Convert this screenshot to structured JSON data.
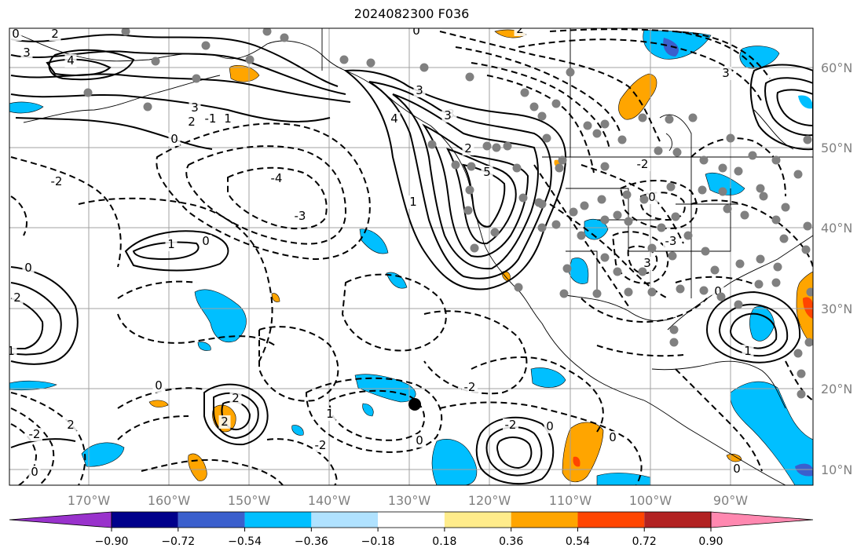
{
  "title": "2024082300 F036",
  "lon_labels": [
    "170°W",
    "160°W",
    "150°W",
    "140°W",
    "130°W",
    "120°W",
    "110°W",
    "100°W",
    "90°W"
  ],
  "lat_labels": [
    "60°N",
    "50°N",
    "40°N",
    "30°N",
    "20°N",
    "10°N"
  ],
  "colorbar": {
    "ticks": [
      "−0.90",
      "−0.72",
      "−0.54",
      "−0.36",
      "−0.18",
      "0.18",
      "0.36",
      "0.54",
      "0.72",
      "0.90"
    ],
    "colors": [
      "#9932cc",
      "#00008b",
      "#3a5fcd",
      "#00bfff",
      "#b0e2ff",
      "#ffffff",
      "#ffec8b",
      "#ffa500",
      "#ff4500",
      "#b22222",
      "#ff88b0"
    ]
  },
  "contour_labels": [
    {
      "text": "0"
    },
    {
      "text": "2"
    },
    {
      "text": "3"
    },
    {
      "text": "4"
    },
    {
      "text": "3"
    },
    {
      "text": "2"
    },
    {
      "text": "1"
    },
    {
      "text": "0"
    },
    {
      "text": "-2"
    },
    {
      "text": "-4"
    },
    {
      "text": "-3"
    },
    {
      "text": "1"
    },
    {
      "text": "0"
    },
    {
      "text": "0"
    },
    {
      "text": "2"
    },
    {
      "text": "1"
    },
    {
      "text": "-2"
    },
    {
      "text": "0"
    },
    {
      "text": "2"
    },
    {
      "text": "-2"
    },
    {
      "text": "1"
    },
    {
      "text": "0"
    },
    {
      "text": "-2"
    },
    {
      "text": "0"
    },
    {
      "text": "3"
    },
    {
      "text": "4"
    },
    {
      "text": "5"
    },
    {
      "text": "1"
    },
    {
      "text": "3"
    },
    {
      "text": "2"
    },
    {
      "text": "0"
    },
    {
      "text": "2"
    },
    {
      "text": "3"
    },
    {
      "text": "-2"
    },
    {
      "text": "0"
    },
    {
      "text": "-3"
    },
    {
      "text": "3"
    },
    {
      "text": "0"
    },
    {
      "text": "1"
    },
    {
      "text": "2"
    },
    {
      "text": "-2"
    },
    {
      "text": "0"
    },
    {
      "text": "0"
    },
    {
      "text": "0"
    },
    {
      "text": "-1"
    },
    {
      "text": "2"
    },
    {
      "text": "3"
    }
  ]
}
